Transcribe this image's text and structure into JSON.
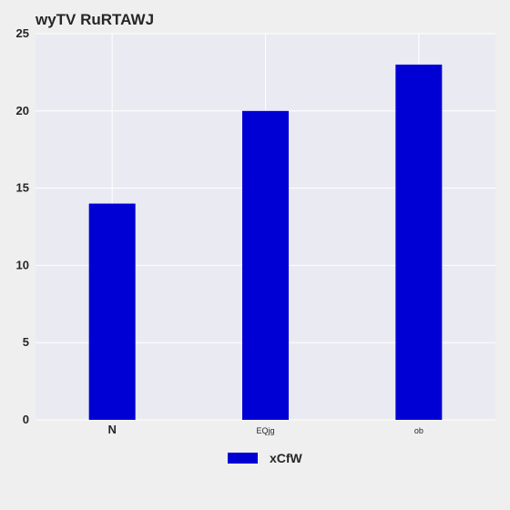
{
  "chart_data": {
    "type": "bar",
    "title": "wyTV RuRTAWJ",
    "xlabel": "",
    "ylabel": "",
    "categories": [
      "N",
      "EQjg",
      "ob"
    ],
    "series": [
      {
        "name": "xCfW",
        "values": [
          14,
          20,
          23
        ]
      }
    ],
    "ylim": [
      0,
      25
    ],
    "yticks": [
      0,
      5,
      10,
      15,
      20,
      25
    ],
    "grid": true,
    "legend": "bottom-center",
    "colors": {
      "bar": "#0000d4",
      "plot_background": "#eaeaf2",
      "figure_background": "#efefef",
      "grid": "#ffffff"
    }
  }
}
